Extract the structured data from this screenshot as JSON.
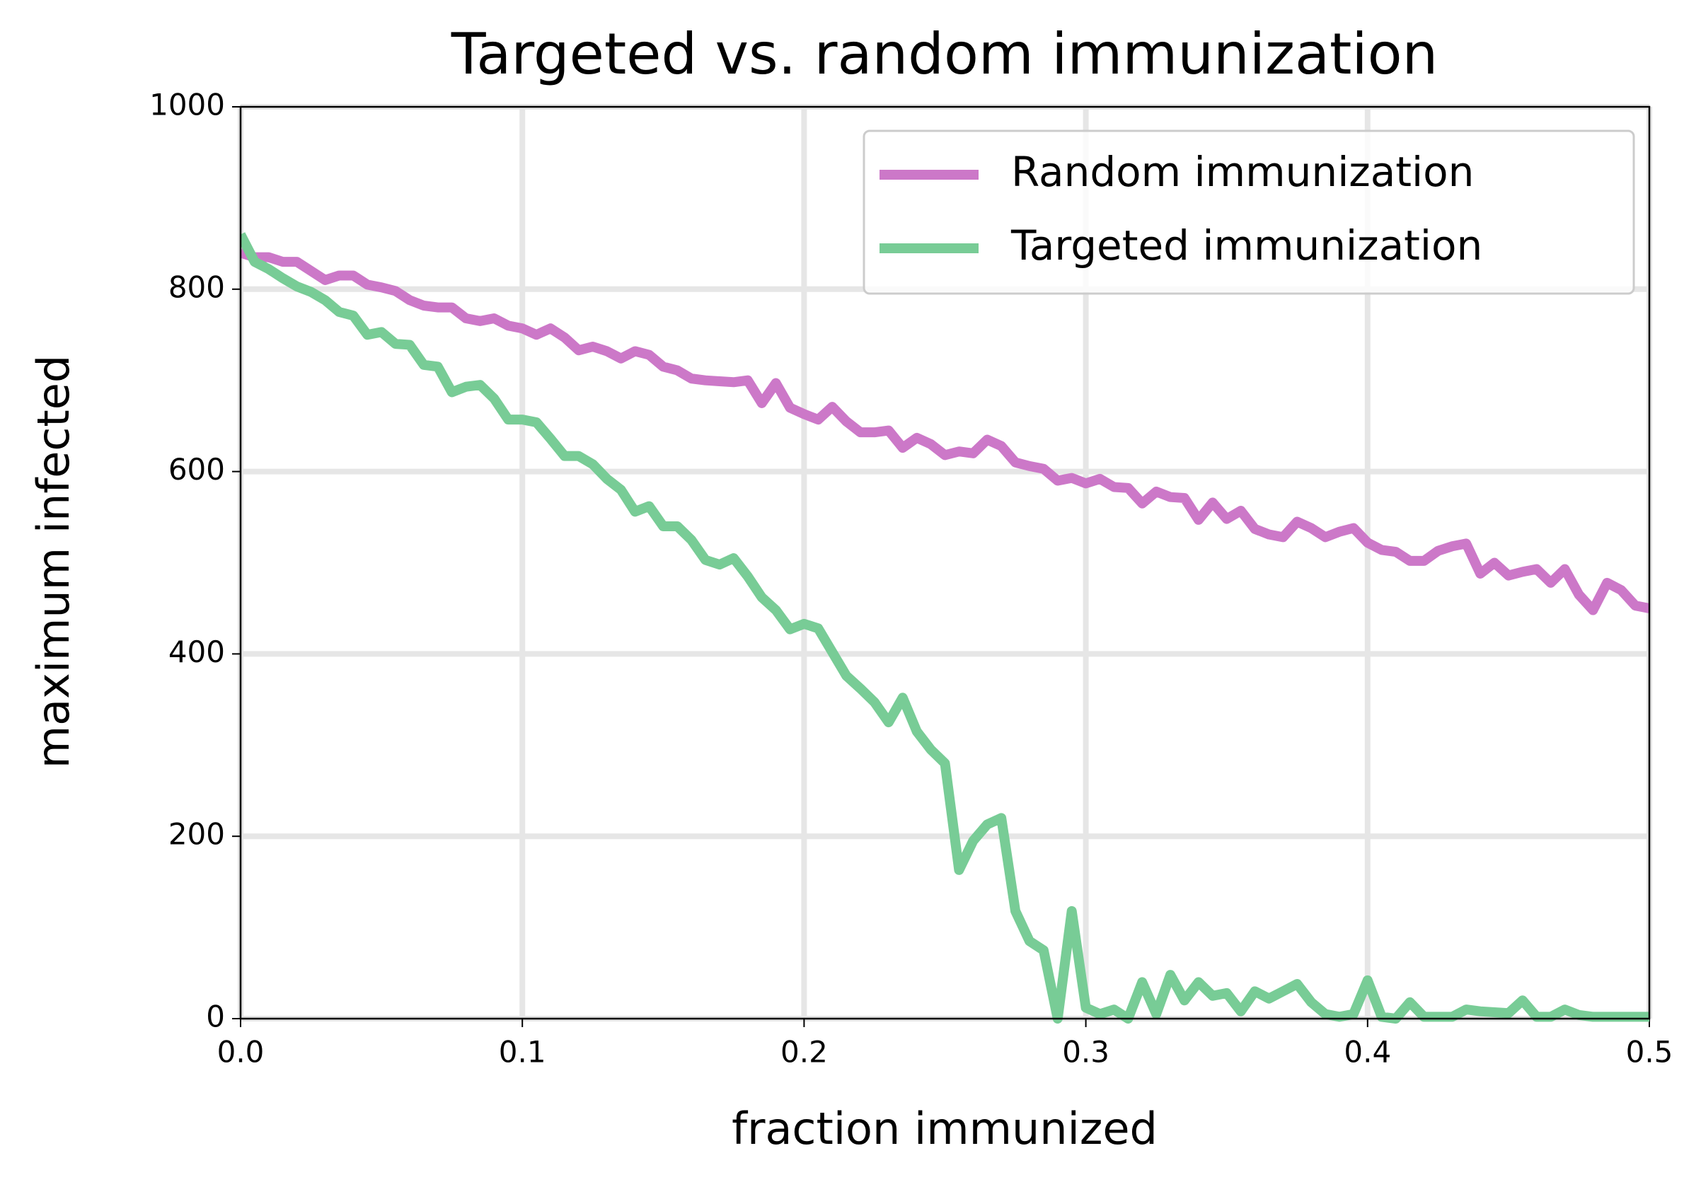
{
  "chart_data": {
    "type": "line",
    "title": "Targeted vs. random immunization",
    "xlabel": "fraction immunized",
    "ylabel": "maximum infected",
    "x": [
      0,
      0.005,
      0.01,
      0.015,
      0.02,
      0.025,
      0.03,
      0.035,
      0.04,
      0.045,
      0.05,
      0.055,
      0.06,
      0.065,
      0.07,
      0.075,
      0.08,
      0.085,
      0.09,
      0.095,
      0.1,
      0.105,
      0.11,
      0.115,
      0.12,
      0.125,
      0.13,
      0.135,
      0.14,
      0.145,
      0.15,
      0.155,
      0.16,
      0.165,
      0.17,
      0.175,
      0.18,
      0.185,
      0.19,
      0.195,
      0.2,
      0.205,
      0.21,
      0.215,
      0.22,
      0.225,
      0.23,
      0.235,
      0.24,
      0.245,
      0.25,
      0.255,
      0.26,
      0.265,
      0.27,
      0.275,
      0.28,
      0.285,
      0.29,
      0.295,
      0.3,
      0.305,
      0.31,
      0.315,
      0.32,
      0.325,
      0.33,
      0.335,
      0.34,
      0.345,
      0.35,
      0.355,
      0.36,
      0.365,
      0.37,
      0.375,
      0.38,
      0.385,
      0.39,
      0.395,
      0.4,
      0.405,
      0.41,
      0.415,
      0.42,
      0.425,
      0.43,
      0.435,
      0.44,
      0.445,
      0.45,
      0.455,
      0.46,
      0.465,
      0.47,
      0.475,
      0.48,
      0.485,
      0.49,
      0.495,
      0.5
    ],
    "series": [
      {
        "name": "Random immunization",
        "color": "#cc78c8",
        "values": [
          840,
          835,
          835,
          830,
          830,
          820,
          810,
          815,
          815,
          805,
          802,
          798,
          788,
          782,
          780,
          780,
          768,
          765,
          768,
          760,
          757,
          750,
          757,
          747,
          733,
          737,
          732,
          724,
          732,
          728,
          715,
          711,
          702,
          700,
          699,
          698,
          700,
          675,
          697,
          670,
          663,
          657,
          671,
          655,
          643,
          643,
          645,
          626,
          637,
          630,
          618,
          622,
          620,
          635,
          628,
          610,
          606,
          603,
          590,
          593,
          587,
          592,
          583,
          582,
          565,
          578,
          572,
          571,
          547,
          566,
          548,
          557,
          537,
          531,
          528,
          545,
          538,
          528,
          534,
          538,
          522,
          514,
          512,
          502,
          502,
          513,
          518,
          521,
          488,
          500,
          486,
          490,
          493,
          478,
          493,
          465,
          448,
          478,
          470,
          453,
          450
        ]
      },
      {
        "name": "Targeted immunization",
        "color": "#78cc96",
        "values": [
          860,
          830,
          822,
          812,
          803,
          797,
          788,
          775,
          771,
          750,
          753,
          740,
          739,
          717,
          715,
          687,
          693,
          695,
          680,
          657,
          657,
          654,
          636,
          617,
          617,
          608,
          592,
          580,
          556,
          562,
          540,
          540,
          525,
          503,
          498,
          505,
          485,
          462,
          448,
          427,
          433,
          428,
          402,
          376,
          362,
          347,
          325,
          352,
          315,
          295,
          280,
          163,
          195,
          213,
          220,
          118,
          85,
          75,
          0,
          118,
          12,
          5,
          10,
          0,
          40,
          5,
          48,
          20,
          40,
          25,
          28,
          8,
          30,
          22,
          30,
          38,
          18,
          5,
          2,
          5,
          42,
          2,
          0,
          18,
          2,
          2,
          2,
          10,
          8,
          7,
          6,
          20,
          2,
          2,
          10,
          4,
          2,
          2,
          2,
          2,
          2
        ]
      }
    ],
    "xlim": [
      0,
      0.5
    ],
    "xticks": [
      {
        "value": 0,
        "label": "0.0"
      },
      0.1,
      0.2,
      0.3,
      0.4,
      0.5
    ],
    "ylim": [
      0,
      1000
    ],
    "yticks": [
      0,
      200,
      400,
      600,
      800,
      1000
    ],
    "grid": true,
    "legend": "upper right"
  }
}
